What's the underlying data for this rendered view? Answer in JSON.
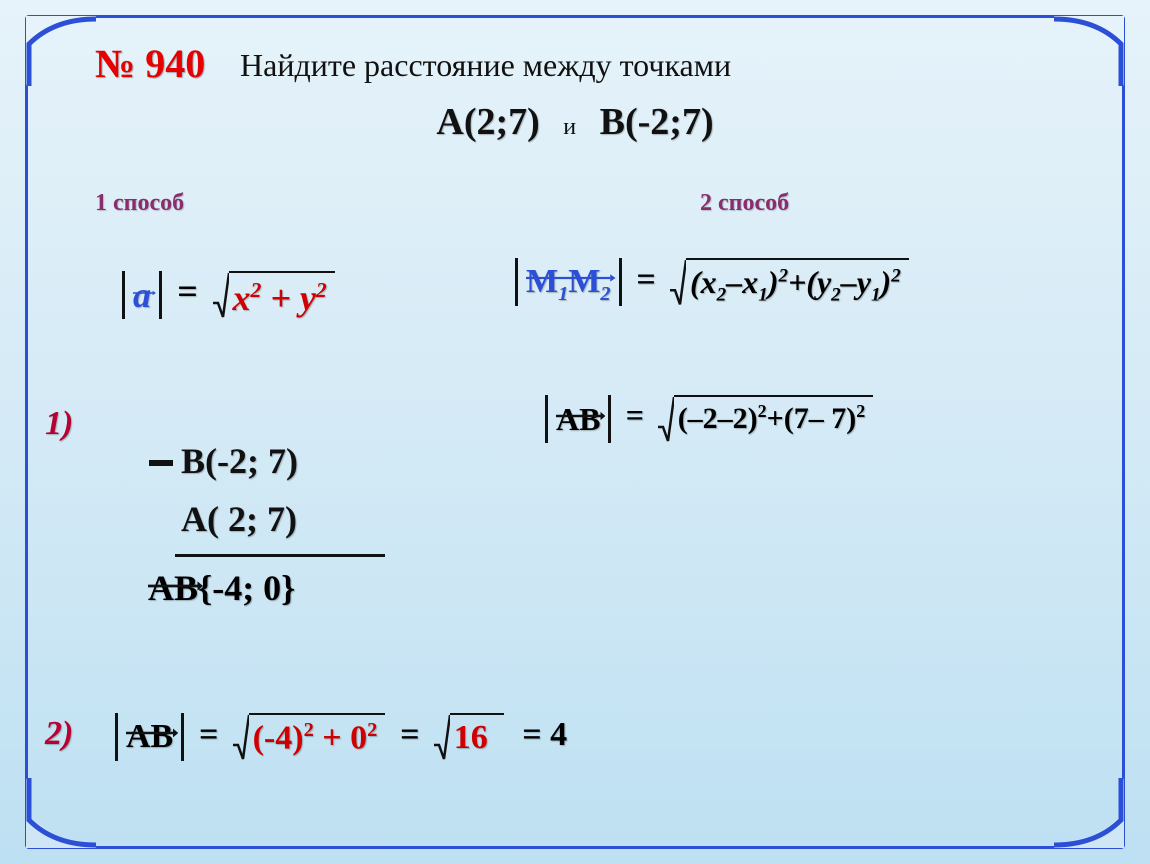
{
  "problem_number": "№ 940",
  "title": "Найдите расстояние между точками",
  "point_A": "A(2;7)",
  "and": "и",
  "point_B": "B(-2;7)",
  "method1": "1 способ",
  "method2": "2 способ",
  "formula_a": {
    "vec": "a",
    "eq": "=",
    "radicand": "x<span class='sup'>2</span> + y<span class='sup'>2</span>"
  },
  "formula_m": {
    "vec": "M<span class='sub'>1</span>M<span class='sub'>2</span>",
    "eq": "=",
    "radicand": "(x<span class='sub'>2</span>–x<span class='sub'>1</span>)<span class='sup'>2</span>+(y<span class='sub'>2</span>–y<span class='sub'>1</span>)<span class='sup'>2</span>"
  },
  "step1_label": "1)",
  "step2_label": "2)",
  "subtract": {
    "B": "B(-2; 7)",
    "A": "A( 2; 7)"
  },
  "ab_result": {
    "vec": "AB",
    "coords": "{-4; 0}"
  },
  "formula_ab2": {
    "vec": "AB",
    "eq": "=",
    "radicand": "(–2–2)<span class='sup'>2</span>+(7– 7)<span class='sup'>2</span>"
  },
  "final": {
    "vec": "AB",
    "eq": "=",
    "rad1": "(-4)<span class='sup'>2</span> + 0<span class='sup'>2</span>",
    "rad2": "16",
    "result": "= 4"
  },
  "colors": {
    "blue": "#2b4fd6",
    "red": "#d10000",
    "dark": "#111",
    "purple": "#8a2c6d"
  }
}
